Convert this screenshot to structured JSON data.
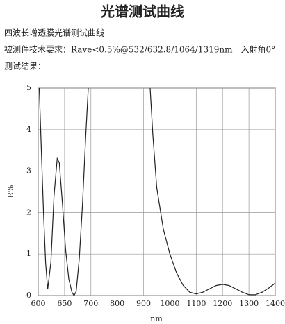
{
  "header": {
    "title": "光谱测试曲线",
    "lines": [
      "四波长增透膜光谱测试曲线",
      "被测件技术要求：Rave<0.5%@532/632.8/1064/1319nm　入射角0°",
      "测试结果："
    ]
  },
  "chart_data": {
    "type": "line",
    "ylabel": "R%",
    "xlabel": "nm",
    "x": [
      602,
      606,
      610,
      614,
      618,
      624,
      630,
      636,
      640,
      646,
      652,
      658,
      664,
      668,
      672,
      678,
      684,
      690,
      695,
      800,
      925,
      935,
      950,
      975,
      1000,
      1025,
      1050,
      1075,
      1100,
      1125,
      1150,
      1175,
      1200,
      1225,
      1250,
      1275,
      1300,
      1325,
      1350,
      1375,
      1400
    ],
    "series": [
      {
        "color": "#222222",
        "values": [
          5.0,
          3.5,
          2.0,
          0.8,
          0.15,
          0.8,
          2.4,
          3.3,
          3.2,
          2.2,
          1.1,
          0.4,
          0.08,
          0.0,
          0.1,
          0.9,
          2.2,
          3.8,
          5.0,
          null,
          5.0,
          3.9,
          2.6,
          1.6,
          1.0,
          0.55,
          0.25,
          0.08,
          0.04,
          0.08,
          0.16,
          0.24,
          0.27,
          0.24,
          0.16,
          0.08,
          0.02,
          0.02,
          0.08,
          0.18,
          0.3
        ]
      }
    ],
    "xlim": [
      600,
      1400
    ],
    "xticks": [
      600,
      650,
      700,
      800,
      900,
      1000,
      1100,
      1200,
      1300,
      1400
    ],
    "ylim": [
      0,
      5
    ],
    "yticks": [
      0,
      1,
      2,
      3,
      4,
      5
    ],
    "grid": true
  }
}
